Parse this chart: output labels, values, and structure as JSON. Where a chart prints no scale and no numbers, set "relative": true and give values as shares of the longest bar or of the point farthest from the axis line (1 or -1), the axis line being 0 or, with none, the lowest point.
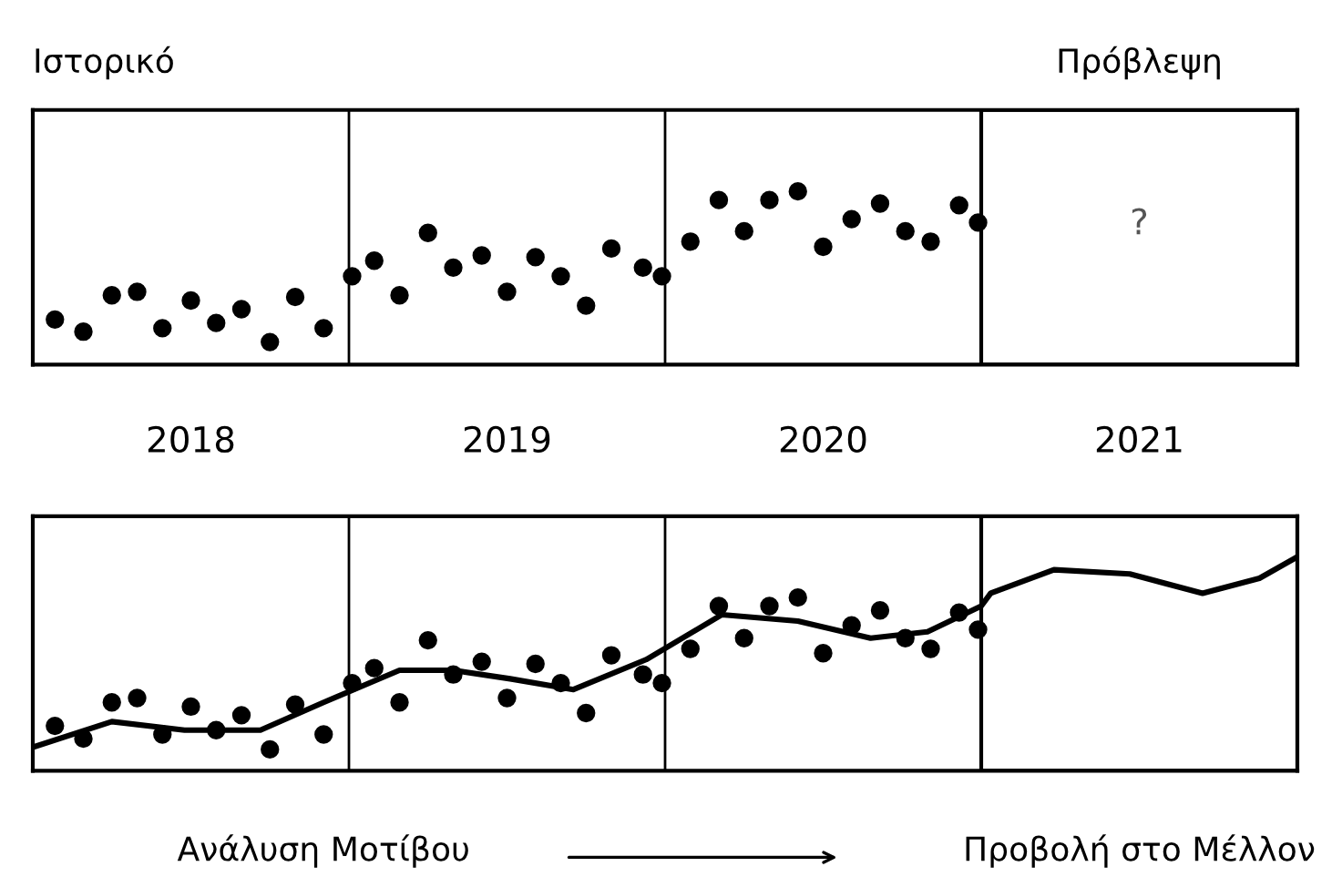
{
  "chart_data": [
    {
      "type": "scatter",
      "relative": true,
      "xlim": [
        2017.5,
        2021.5
      ],
      "xticks": [
        2018,
        2019,
        2020,
        2021
      ],
      "tick_labels": "x",
      "marker": "circle",
      "grid": false,
      "legend": false,
      "series": [
        {
          "color": "#000000",
          "x": [
            2017.57,
            2017.66,
            2017.75,
            2017.83,
            2017.91,
            2018.0,
            2018.08,
            2018.16,
            2018.25,
            2018.33,
            2018.42,
            2018.51,
            2018.58,
            2018.66,
            2018.75,
            2018.83,
            2018.92,
            2019.0,
            2019.09,
            2019.17,
            2019.25,
            2019.33,
            2019.43,
            2019.49,
            2019.58,
            2019.67,
            2019.75,
            2019.83,
            2019.92,
            2020.0,
            2020.09,
            2020.18,
            2020.26,
            2020.34,
            2020.43,
            2020.49
          ],
          "values": [
            0.26,
            0.19,
            0.4,
            0.42,
            0.21,
            0.37,
            0.24,
            0.32,
            0.13,
            0.39,
            0.21,
            0.51,
            0.6,
            0.4,
            0.76,
            0.56,
            0.63,
            0.42,
            0.62,
            0.51,
            0.34,
            0.67,
            0.56,
            0.51,
            0.71,
            0.95,
            0.77,
            0.95,
            1.0,
            0.68,
            0.84,
            0.93,
            0.77,
            0.71,
            0.92,
            0.82
          ]
        }
      ],
      "ref_lines": [
        {
          "axis": "x",
          "value": 2018.5,
          "color": "#000000"
        },
        {
          "axis": "x",
          "value": 2019.5,
          "color": "#000000"
        }
      ],
      "bands": [
        {
          "axis": "x",
          "from": 2020.5,
          "to": 2021.5,
          "label": "Πρόβλεψη",
          "color": "#ffffff"
        }
      ],
      "annotations": [
        "Ιστορικό",
        "?"
      ]
    },
    {
      "type": "scatter",
      "relative": true,
      "xlim": [
        2017.5,
        2021.5
      ],
      "xticks": [
        2018,
        2019,
        2020,
        2021
      ],
      "tick_labels": false,
      "marker": "circle",
      "grid": false,
      "legend": false,
      "series": [
        {
          "color": "#000000",
          "x": [
            2017.57,
            2017.66,
            2017.75,
            2017.83,
            2017.91,
            2018.0,
            2018.08,
            2018.16,
            2018.25,
            2018.33,
            2018.42,
            2018.51,
            2018.58,
            2018.66,
            2018.75,
            2018.83,
            2018.92,
            2019.0,
            2019.09,
            2019.17,
            2019.25,
            2019.33,
            2019.43,
            2019.49,
            2019.58,
            2019.67,
            2019.75,
            2019.83,
            2019.92,
            2020.0,
            2020.09,
            2020.18,
            2020.26,
            2020.34,
            2020.43,
            2020.49
          ],
          "values": [
            0.21,
            0.15,
            0.32,
            0.34,
            0.17,
            0.3,
            0.19,
            0.26,
            0.1,
            0.31,
            0.17,
            0.41,
            0.48,
            0.32,
            0.61,
            0.45,
            0.51,
            0.34,
            0.5,
            0.41,
            0.27,
            0.54,
            0.45,
            0.41,
            0.57,
            0.77,
            0.62,
            0.77,
            0.81,
            0.55,
            0.68,
            0.75,
            0.62,
            0.57,
            0.74,
            0.66
          ]
        },
        {
          "type": "line",
          "marker": "none",
          "color": "#000000",
          "x": [
            2017.5,
            2017.75,
            2017.98,
            2018.22,
            2018.42,
            2018.66,
            2018.83,
            2019.01,
            2019.21,
            2019.44,
            2019.68,
            2019.92,
            2020.15,
            2020.33,
            2020.5,
            2020.53,
            2020.73,
            2020.97,
            2021.2,
            2021.38,
            2021.5
          ],
          "values": [
            0.11,
            0.23,
            0.19,
            0.19,
            0.32,
            0.47,
            0.47,
            0.43,
            0.38,
            0.52,
            0.73,
            0.7,
            0.62,
            0.65,
            0.77,
            0.83,
            0.94,
            0.92,
            0.83,
            0.9,
            1.0
          ]
        }
      ],
      "ref_lines": [
        {
          "axis": "x",
          "value": 2018.5,
          "color": "#000000"
        },
        {
          "axis": "x",
          "value": 2019.5,
          "color": "#000000"
        }
      ],
      "bands": [
        {
          "axis": "x",
          "from": 2020.5,
          "to": 2021.5,
          "label": "Προβολή στο Μέλλον",
          "color": "#ffffff"
        }
      ],
      "annotations": [
        "Ανάλυση Μοτίβου"
      ]
    }
  ]
}
